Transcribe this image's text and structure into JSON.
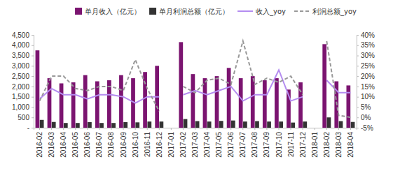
{
  "chart_data": {
    "type": "bar",
    "categories": [
      "2016-02",
      "2016-03",
      "2016-04",
      "2016-05",
      "2016-06",
      "2016-07",
      "2016-08",
      "2016-09",
      "2016-10",
      "2016-11",
      "2016-12",
      "2017-01",
      "2017-02",
      "2017-03",
      "2017-04",
      "2017-05",
      "2017-06",
      "2017-07",
      "2017-08",
      "2017-09",
      "2017-10",
      "2017-11",
      "2017-12",
      "2018-01",
      "2018-02",
      "2018-03",
      "2018-04"
    ],
    "series": [
      {
        "name": "单月收入（亿元）",
        "type": "bar",
        "color": "#7b1470",
        "values": [
          3750,
          2400,
          2150,
          2200,
          2550,
          2250,
          2300,
          2550,
          2400,
          2700,
          3000,
          null,
          4150,
          2600,
          2400,
          2500,
          2900,
          2400,
          2500,
          2300,
          2400,
          1850,
          2200,
          null,
          4050,
          2250,
          2050
        ]
      },
      {
        "name": "单月利润总额（亿元）",
        "type": "bar",
        "color": "#333333",
        "values": [
          380,
          280,
          230,
          230,
          270,
          230,
          230,
          270,
          260,
          300,
          300,
          null,
          420,
          320,
          300,
          330,
          350,
          300,
          320,
          300,
          300,
          250,
          300,
          null,
          500,
          320,
          280
        ]
      },
      {
        "name": "收入_yoy",
        "type": "line",
        "axis": "y2",
        "color": "#b48cf0",
        "line_style": "solid",
        "values": [
          9,
          14,
          11,
          11,
          9,
          11,
          11,
          10,
          7,
          10,
          10,
          null,
          11,
          13,
          11,
          13,
          15,
          8,
          11,
          11,
          23,
          8,
          10,
          null,
          18,
          12,
          12
        ]
      },
      {
        "name": "利润总额_yoy",
        "type": "line",
        "axis": "y2",
        "color": "#999999",
        "line_style": "dashed",
        "values": [
          8,
          20,
          20,
          14,
          13,
          15,
          15,
          13,
          28,
          14,
          3,
          null,
          15,
          12,
          18,
          19,
          16,
          37,
          16,
          19,
          17,
          20,
          11,
          null,
          37,
          1,
          0
        ]
      }
    ],
    "ylim": [
      0,
      4500
    ],
    "yticks": [
      {
        "value": 0,
        "label": "-"
      },
      500,
      {
        "value": 1000,
        "label": "1,000"
      },
      {
        "value": 1500,
        "label": "1,500"
      },
      {
        "value": 2000,
        "label": "2,000"
      },
      {
        "value": 2500,
        "label": "2,500"
      },
      {
        "value": 3000,
        "label": "3,000"
      },
      {
        "value": 3500,
        "label": "3,500"
      },
      {
        "value": 4000,
        "label": "4,000"
      },
      {
        "value": 4500,
        "label": "4,500"
      }
    ],
    "y2lim": [
      -5,
      40
    ],
    "y2ticks": [
      {
        "value": -5,
        "label": "-5%"
      },
      {
        "value": 0,
        "label": "0%"
      },
      {
        "value": 5,
        "label": "5%"
      },
      {
        "value": 10,
        "label": "10%"
      },
      {
        "value": 15,
        "label": "15%"
      },
      {
        "value": 20,
        "label": "20%"
      },
      {
        "value": 25,
        "label": "25%"
      },
      {
        "value": 30,
        "label": "30%"
      },
      {
        "value": 35,
        "label": "35%"
      },
      {
        "value": 40,
        "label": "40%"
      }
    ],
    "legend": "top",
    "grid": false
  }
}
